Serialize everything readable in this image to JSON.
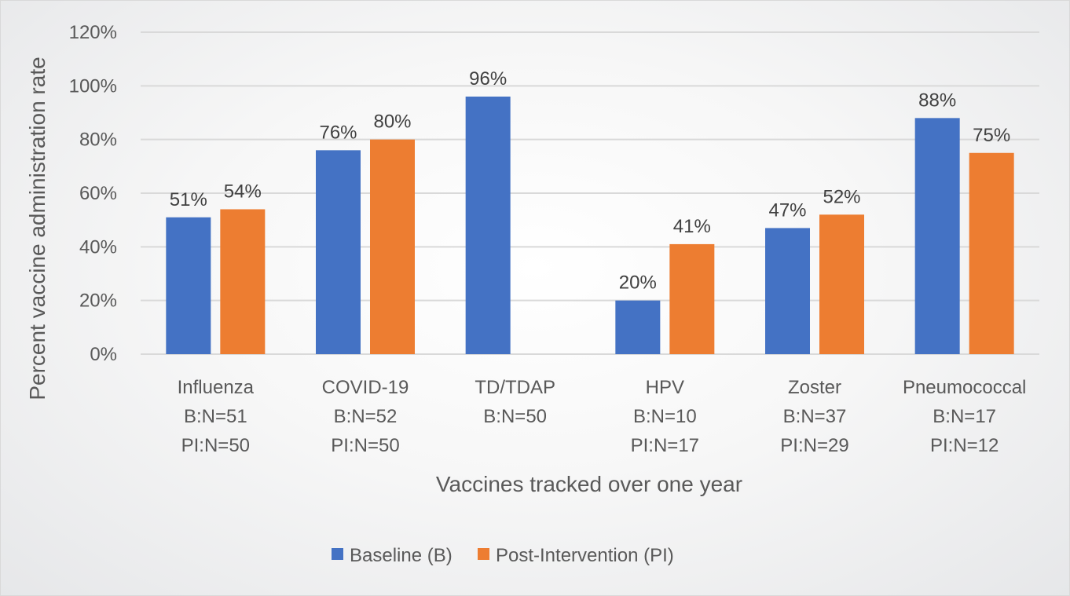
{
  "chart_data": {
    "type": "bar",
    "title": "",
    "xlabel": "Vaccines tracked over one year",
    "ylabel": "Percent vaccine administration rate",
    "ylim": [
      0,
      120
    ],
    "yticks": [
      "0%",
      "20%",
      "40%",
      "60%",
      "80%",
      "100%",
      "120%"
    ],
    "ytick_values": [
      0,
      20,
      40,
      60,
      80,
      100,
      120
    ],
    "grid": true,
    "legend_position": "bottom",
    "categories": [
      {
        "name": "Influenza",
        "lines": [
          "Influenza",
          "B:N=51",
          "PI:N=50"
        ]
      },
      {
        "name": "COVID-19",
        "lines": [
          "COVID-19",
          "B:N=52",
          "PI:N=50"
        ]
      },
      {
        "name": "TD/TDAP",
        "lines": [
          "TD/TDAP",
          "B:N=50"
        ]
      },
      {
        "name": "HPV",
        "lines": [
          "HPV",
          "B:N=10",
          "PI:N=17"
        ]
      },
      {
        "name": "Zoster",
        "lines": [
          "Zoster",
          "B:N=37",
          "PI:N=29"
        ]
      },
      {
        "name": "Pneumococcal",
        "lines": [
          "Pneumococcal",
          "B:N=17",
          "PI:N=12"
        ]
      }
    ],
    "series": [
      {
        "name": "Baseline (B)",
        "color": "#4472C4",
        "values": [
          51,
          76,
          96,
          20,
          47,
          88
        ],
        "labels": [
          "51%",
          "76%",
          "96%",
          "20%",
          "47%",
          "88%"
        ]
      },
      {
        "name": "Post-Intervention (PI)",
        "color": "#ED7D31",
        "values": [
          54,
          80,
          null,
          41,
          52,
          75
        ],
        "labels": [
          "54%",
          "80%",
          "",
          "41%",
          "52%",
          "75%"
        ]
      }
    ]
  }
}
